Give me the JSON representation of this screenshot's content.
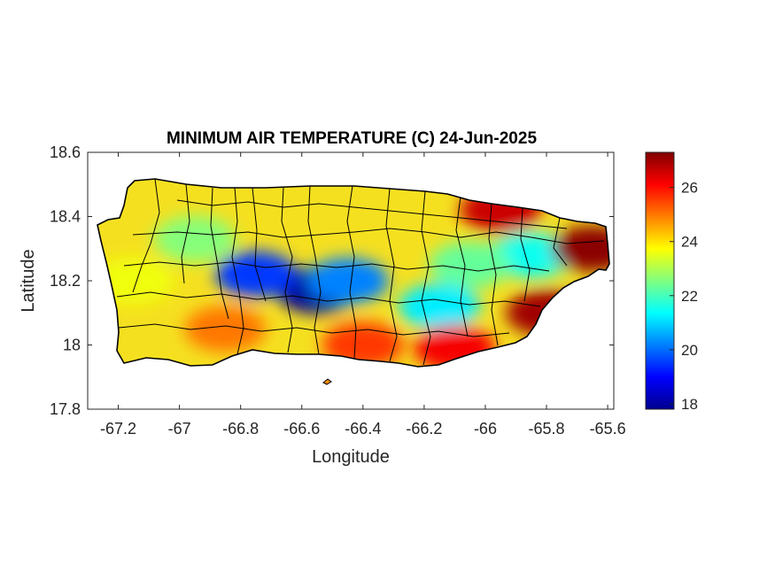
{
  "chart_data": {
    "type": "heatmap",
    "title": "MINIMUM AIR TEMPERATURE (C) 24-Jun-2025",
    "xlabel": "Longitude",
    "ylabel": "Latitude",
    "xlim": [
      -67.3,
      -65.58
    ],
    "ylim": [
      17.8,
      18.6
    ],
    "xticks": [
      -67.2,
      -67,
      -66.8,
      -66.6,
      -66.4,
      -66.2,
      -66,
      -65.8,
      -65.6
    ],
    "xtick_labels": [
      "-67.2",
      "-67",
      "-66.8",
      "-66.6",
      "-66.4",
      "-66.2",
      "-66",
      "-65.8",
      "-65.6"
    ],
    "yticks": [
      17.8,
      18,
      18.2,
      18.4,
      18.6
    ],
    "ytick_labels": [
      "17.8",
      "18",
      "18.2",
      "18.4",
      "18.6"
    ],
    "colorbar": {
      "colormap": "jet",
      "range": [
        17.8,
        27.3
      ],
      "ticks": [
        18,
        20,
        22,
        24,
        26
      ],
      "tick_labels": [
        "18",
        "20",
        "22",
        "24",
        "26"
      ]
    },
    "region": "Puerto Rico",
    "features": [
      {
        "lon": -66.55,
        "lat": 18.17,
        "value": 17.9
      },
      {
        "lon": -66.75,
        "lat": 18.22,
        "value": 19.5
      },
      {
        "lon": -66.45,
        "lat": 18.2,
        "value": 20.2
      },
      {
        "lon": -66.15,
        "lat": 18.12,
        "value": 21.2
      },
      {
        "lon": -65.85,
        "lat": 18.28,
        "value": 21.5
      },
      {
        "lon": -66.05,
        "lat": 18.25,
        "value": 22.3
      },
      {
        "lon": -66.95,
        "lat": 18.33,
        "value": 22.6
      },
      {
        "lon": -66.85,
        "lat": 18.05,
        "value": 25.0
      },
      {
        "lon": -66.4,
        "lat": 18.0,
        "value": 25.6
      },
      {
        "lon": -66.1,
        "lat": 17.99,
        "value": 26.2
      },
      {
        "lon": -65.95,
        "lat": 18.42,
        "value": 26.6
      },
      {
        "lon": -65.65,
        "lat": 18.3,
        "value": 27.2
      },
      {
        "lon": -65.8,
        "lat": 18.1,
        "value": 27.0
      },
      {
        "lon": -67.15,
        "lat": 18.2,
        "value": 23.6
      }
    ]
  },
  "colors": {
    "axis": "#262626",
    "border": "#000000",
    "background": "#ffffff"
  }
}
